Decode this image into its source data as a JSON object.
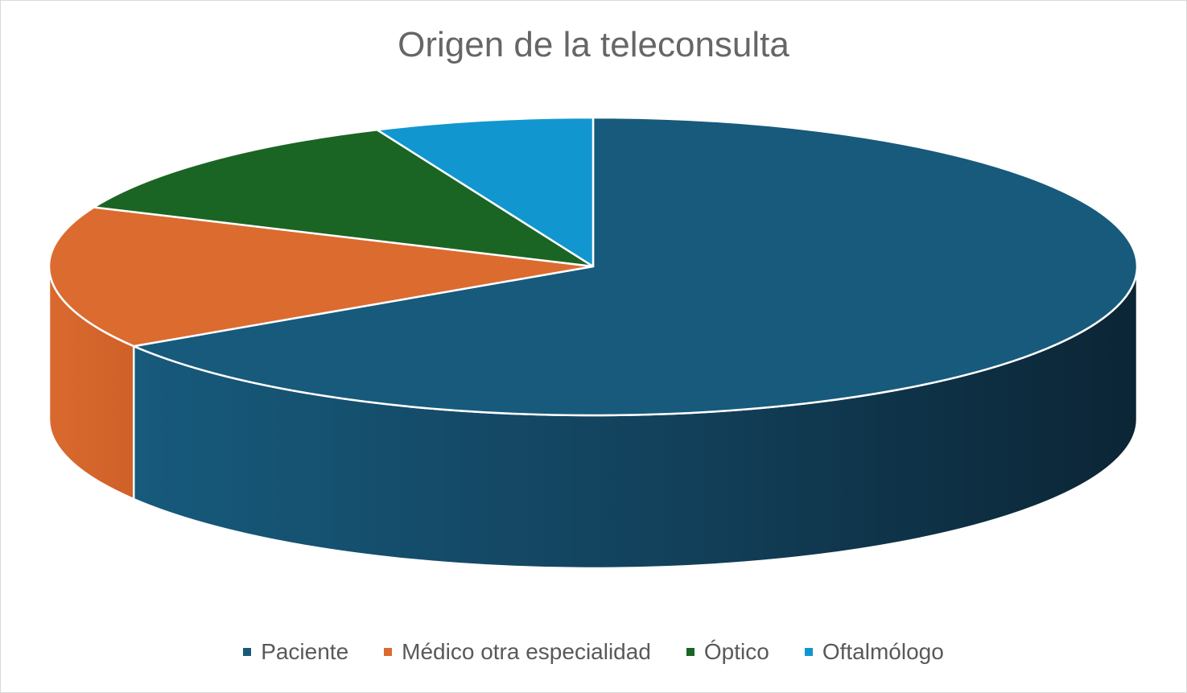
{
  "chart_data": {
    "type": "pie",
    "title": "Origen de la teleconsulta",
    "categories": [
      "Paciente",
      "Médico otra especialidad",
      "Óptico",
      "Oftalmólogo"
    ],
    "values": [
      66.0,
      15.5,
      12.0,
      6.5
    ],
    "colors": [
      "#175a7c",
      "#dc6b30",
      "#1b6524",
      "#1296cf"
    ],
    "legend_position": "bottom",
    "style": "3d"
  }
}
